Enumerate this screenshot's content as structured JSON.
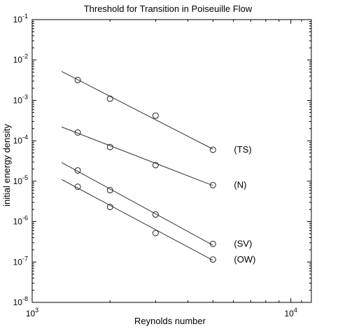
{
  "chart_data": {
    "type": "scatter",
    "title": "Threshold for Transition in Poiseuille Flow",
    "xlabel": "Reynolds number",
    "ylabel": "initial energy density",
    "xscale": "log",
    "yscale": "log",
    "xlim": [
      1000,
      12000
    ],
    "ylim": [
      1e-08,
      0.1
    ],
    "grid": false,
    "x_ticks": [
      {
        "value": 1000,
        "base": "10",
        "exp": "3"
      },
      {
        "value": 10000,
        "base": "10",
        "exp": "4"
      }
    ],
    "y_ticks": [
      {
        "value": 1e-08,
        "base": "10",
        "exp": "-8"
      },
      {
        "value": 1e-07,
        "base": "10",
        "exp": "-7"
      },
      {
        "value": 1e-06,
        "base": "10",
        "exp": "-6"
      },
      {
        "value": 1e-05,
        "base": "10",
        "exp": "-5"
      },
      {
        "value": 0.0001,
        "base": "10",
        "exp": "-4"
      },
      {
        "value": 0.001,
        "base": "10",
        "exp": "-3"
      },
      {
        "value": 0.01,
        "base": "10",
        "exp": "-2"
      },
      {
        "value": 0.1,
        "base": "10",
        "exp": "-1"
      }
    ],
    "series": [
      {
        "name": "(TS)",
        "x": [
          1500,
          2000,
          3000,
          5000
        ],
        "y": [
          0.0032,
          0.0011,
          0.00042,
          6e-05
        ],
        "fit": {
          "x": [
            1300,
            5000
          ],
          "y": [
            0.0052,
            6.2e-05
          ]
        }
      },
      {
        "name": "(N)",
        "x": [
          1500,
          2000,
          3000,
          5000
        ],
        "y": [
          0.00016,
          7e-05,
          2.5e-05,
          8e-06
        ],
        "fit": {
          "x": [
            1300,
            5000
          ],
          "y": [
            0.00022,
            7.8e-06
          ]
        }
      },
      {
        "name": "(SV)",
        "x": [
          1500,
          2000,
          3000,
          5000
        ],
        "y": [
          1.85e-05,
          6e-06,
          1.5e-06,
          2.8e-07
        ],
        "fit": {
          "x": [
            1300,
            5000
          ],
          "y": [
            2.9e-05,
            2.6e-07
          ]
        }
      },
      {
        "name": "(OW)",
        "x": [
          1500,
          2000,
          3000,
          5000
        ],
        "y": [
          7.3e-06,
          2.3e-06,
          5.2e-07,
          1.15e-07
        ],
        "fit": {
          "x": [
            1300,
            5000
          ],
          "y": [
            1.1e-05,
            1.1e-07
          ]
        }
      }
    ]
  }
}
